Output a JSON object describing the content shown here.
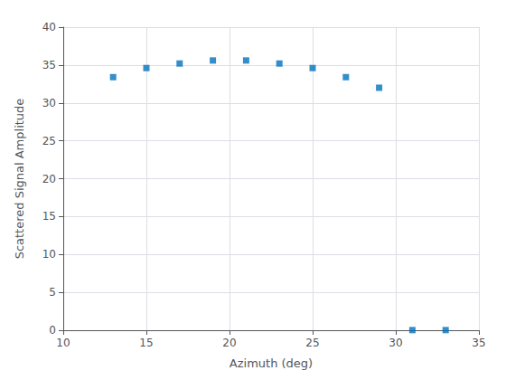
{
  "chart_data": {
    "type": "scatter",
    "x": [
      13,
      15,
      17,
      19,
      21,
      23,
      25,
      27,
      29,
      31,
      33
    ],
    "values": [
      33.4,
      34.6,
      35.2,
      35.6,
      35.6,
      35.2,
      34.6,
      33.4,
      32.0,
      0.02,
      0.02
    ],
    "marker": "square",
    "color": "#0072BD",
    "xlabel": "Azimuth (deg)",
    "ylabel": "Scattered Signal Amplitude",
    "xlim": [
      10,
      35
    ],
    "ylim": [
      0,
      40
    ],
    "xticks": [
      10,
      15,
      20,
      25,
      30,
      35
    ],
    "yticks": [
      0,
      5,
      10,
      15,
      20,
      25,
      30,
      35,
      40
    ],
    "grid": true
  }
}
